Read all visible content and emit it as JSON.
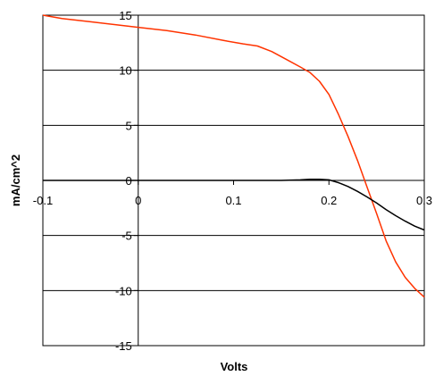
{
  "chart_data": {
    "type": "line",
    "title": "",
    "xlabel": "Volts",
    "ylabel": "mA/cm^2",
    "xlim": [
      -0.1,
      0.3
    ],
    "ylim": [
      -15,
      15
    ],
    "x_ticks": [
      -0.1,
      0,
      0.1,
      0.2,
      0.3
    ],
    "x_tick_labels": [
      "-0.1",
      "0",
      "0.1",
      "0.2",
      "0.3"
    ],
    "y_ticks": [
      15,
      10,
      5,
      0,
      -5,
      -10,
      -15
    ],
    "y_tick_labels": [
      "15",
      "10",
      "5",
      "0",
      "-5",
      "-10",
      "-15"
    ],
    "grid": "horizontal",
    "legend": "none",
    "series": [
      {
        "color": "#ff3300",
        "x": [
          -0.1,
          -0.08,
          -0.05,
          -0.02,
          0,
          0.03,
          0.06,
          0.09,
          0.11,
          0.125,
          0.14,
          0.155,
          0.17,
          0.18,
          0.19,
          0.2,
          0.21,
          0.22,
          0.23,
          0.24,
          0.25,
          0.26,
          0.27,
          0.28,
          0.29,
          0.3
        ],
        "y": [
          15.0,
          14.7,
          14.4,
          14.1,
          13.9,
          13.6,
          13.2,
          12.7,
          12.4,
          12.2,
          11.7,
          11.0,
          10.3,
          9.8,
          9.0,
          7.8,
          6.0,
          4.0,
          1.8,
          -0.6,
          -3.0,
          -5.5,
          -7.4,
          -8.8,
          -9.8,
          -10.6
        ]
      },
      {
        "color": "#000000",
        "x": [
          -0.1,
          -0.05,
          0,
          0.05,
          0.1,
          0.15,
          0.17,
          0.18,
          0.19,
          0.2,
          0.21,
          0.22,
          0.23,
          0.24,
          0.25,
          0.26,
          0.27,
          0.28,
          0.29,
          0.3
        ],
        "y": [
          0,
          0,
          0,
          0,
          0,
          0,
          0.05,
          0.1,
          0.1,
          0.05,
          -0.2,
          -0.55,
          -1.0,
          -1.5,
          -2.05,
          -2.65,
          -3.2,
          -3.7,
          -4.15,
          -4.5
        ]
      }
    ]
  }
}
